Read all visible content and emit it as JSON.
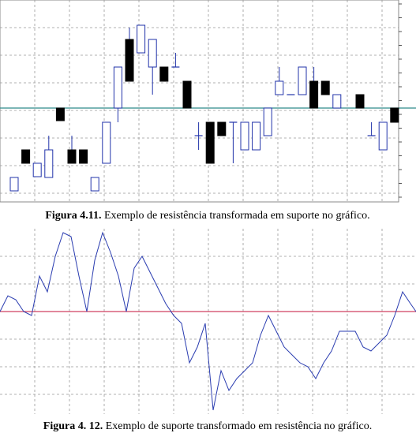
{
  "figures": [
    {
      "label": "Figura 4.11.",
      "caption": " Exemplo de resistência transformada em suporte no gráfico.",
      "chart_data": {
        "type": "candlestick",
        "open": [
          13,
          65,
          31,
          30,
          118,
          65,
          65,
          13,
          48,
          118,
          205,
          188,
          170,
          170,
          170,
          152,
          83,
          100,
          100,
          100,
          65,
          65,
          83,
          135,
          135,
          135,
          152,
          152,
          118,
          null,
          135,
          83,
          65,
          118
        ],
        "high": [
          30,
          65,
          48,
          83,
          118,
          83,
          65,
          30,
          100,
          170,
          220,
          223,
          205,
          170,
          188,
          152,
          100,
          100,
          100,
          100,
          100,
          100,
          118,
          170,
          135,
          170,
          170,
          152,
          135,
          null,
          135,
          100,
          100,
          118
        ],
        "low": [
          13,
          48,
          31,
          30,
          102,
          48,
          48,
          13,
          48,
          100,
          152,
          188,
          135,
          152,
          170,
          118,
          65,
          48,
          83,
          48,
          65,
          65,
          83,
          135,
          135,
          135,
          118,
          135,
          118,
          null,
          118,
          83,
          65,
          100
        ],
        "close": [
          30,
          48,
          48,
          65,
          102,
          48,
          48,
          30,
          100,
          170,
          152,
          223,
          205,
          152,
          170,
          118,
          83,
          48,
          83,
          100,
          100,
          100,
          118,
          152,
          135,
          170,
          118,
          135,
          135,
          null,
          118,
          83,
          100,
          100
        ],
        "ylim": [
          0,
          255
        ],
        "level": 118,
        "level_color": "#2e8b8b",
        "up_color": "#ffffff",
        "down_color": "#000000",
        "edge_color": "#2233aa",
        "grid": true
      }
    },
    {
      "label": "Figura 4. 12.",
      "caption": " Exemplo de suporte transformado em resistência no gráfico.",
      "chart_data": {
        "type": "line",
        "x": [
          0,
          10,
          20,
          30,
          40,
          50,
          60,
          70,
          80,
          90,
          100,
          110,
          120,
          130,
          140,
          150,
          160,
          170,
          180,
          190,
          200,
          210,
          220,
          230,
          240,
          250,
          260,
          270,
          280,
          290,
          300,
          310,
          320,
          330,
          340,
          350,
          360,
          370,
          380,
          390,
          400,
          410,
          420,
          430,
          440,
          450,
          460,
          470,
          480,
          490,
          500,
          510,
          520,
          527
        ],
        "values": [
          130,
          150,
          145,
          130,
          125,
          175,
          155,
          200,
          230,
          225,
          175,
          130,
          195,
          230,
          205,
          175,
          130,
          185,
          200,
          180,
          160,
          140,
          125,
          115,
          65,
          85,
          115,
          5,
          55,
          30,
          45,
          55,
          65,
          100,
          125,
          105,
          85,
          75,
          65,
          60,
          45,
          65,
          80,
          105,
          105,
          105,
          85,
          80,
          90,
          100,
          125,
          155,
          140,
          130
        ],
        "xlim": [
          0,
          527
        ],
        "ylim": [
          0,
          235
        ],
        "color": "#2a3cb0",
        "level": 130,
        "level_color": "#d04060",
        "grid": true
      }
    }
  ]
}
